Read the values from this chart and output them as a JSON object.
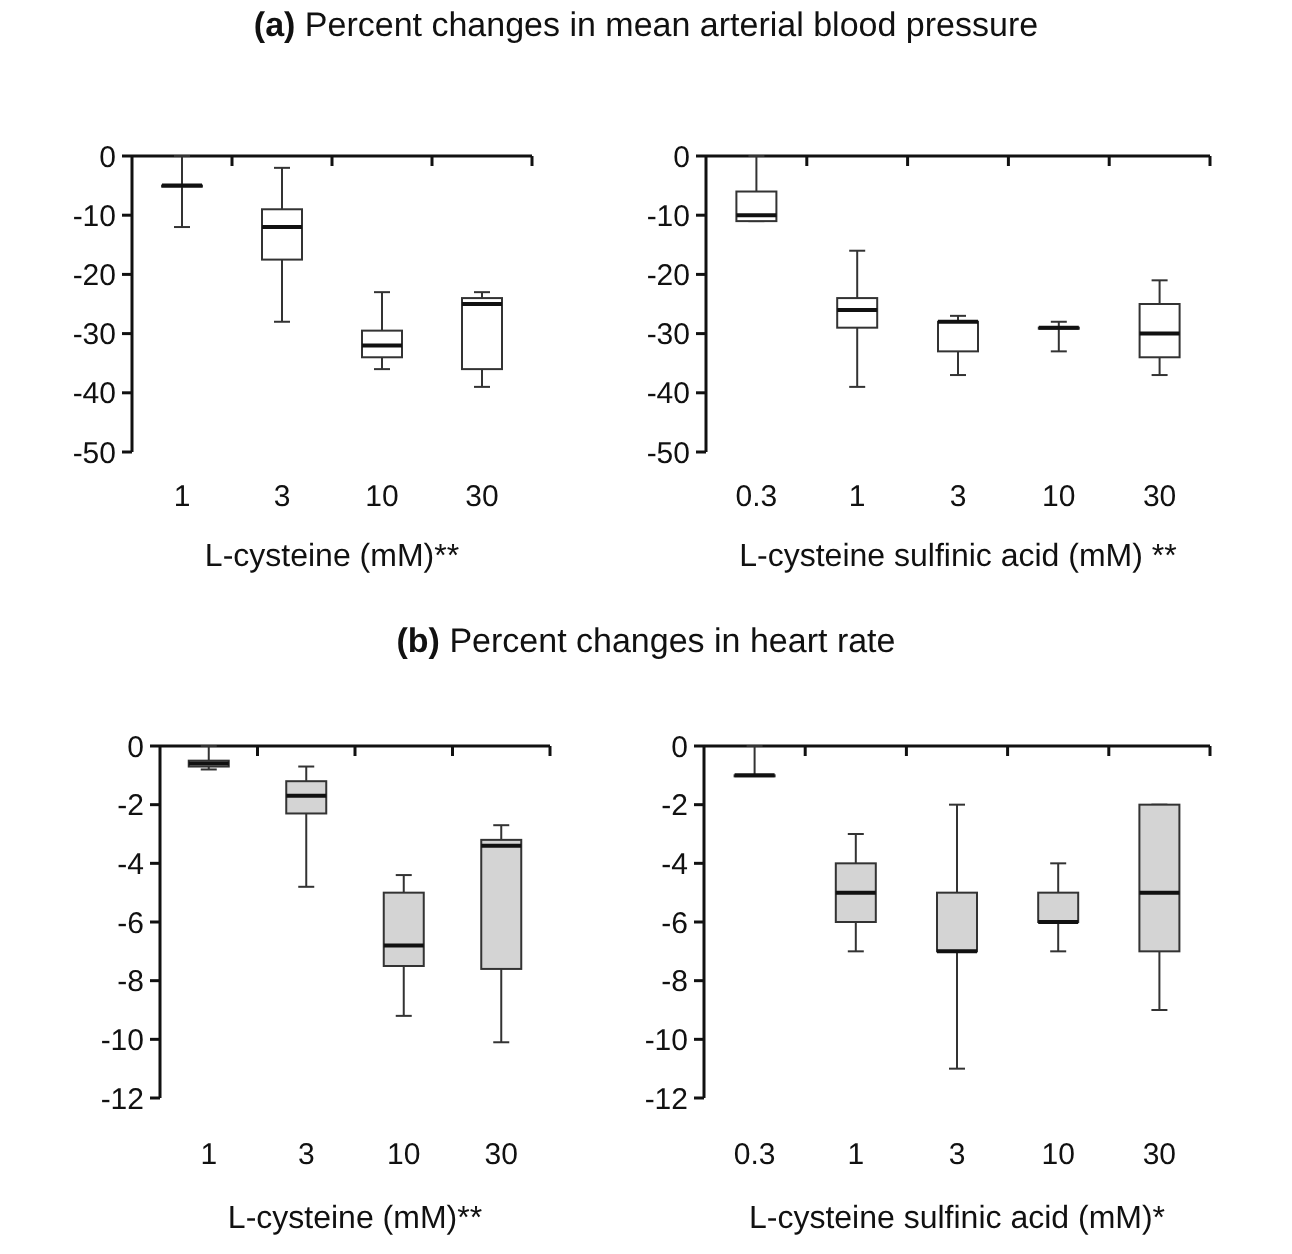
{
  "chart_data": [
    {
      "type": "box",
      "title": "(a) Percent changes in mean arterial blood pressure",
      "xlabel": "L-cysteine (mM)**",
      "categories": [
        "1",
        "3",
        "10",
        "30"
      ],
      "ylim": [
        -50,
        0
      ],
      "yticks": [
        0,
        -10,
        -20,
        -30,
        -40,
        -50
      ],
      "series": [
        {
          "color": "#ffffff",
          "boxes": [
            {
              "low": -12,
              "q1": -5,
              "median": -5,
              "q3": -5,
              "high": 0
            },
            {
              "low": -28,
              "q1": -17.5,
              "median": -12,
              "q3": -9,
              "high": -2
            },
            {
              "low": -36,
              "q1": -34,
              "median": -32,
              "q3": -29.5,
              "high": -23
            },
            {
              "low": -39,
              "q1": -36,
              "median": -25,
              "q3": -24,
              "high": -23
            }
          ]
        }
      ]
    },
    {
      "type": "box",
      "xlabel": "L-cysteine sulfinic acid (mM) **",
      "categories": [
        "0.3",
        "1",
        "3",
        "10",
        "30"
      ],
      "ylim": [
        -50,
        0
      ],
      "yticks": [
        0,
        -10,
        -20,
        -30,
        -40,
        -50
      ],
      "series": [
        {
          "color": "#ffffff",
          "boxes": [
            {
              "low": -11,
              "q1": -11,
              "median": -10,
              "q3": -6,
              "high": 0
            },
            {
              "low": -39,
              "q1": -29,
              "median": -26,
              "q3": -24,
              "high": -16
            },
            {
              "low": -37,
              "q1": -33,
              "median": -28,
              "q3": -28,
              "high": -27
            },
            {
              "low": -33,
              "q1": -29,
              "median": -29,
              "q3": -29,
              "high": -28
            },
            {
              "low": -37,
              "q1": -34,
              "median": -30,
              "q3": -25,
              "high": -21
            }
          ]
        }
      ]
    },
    {
      "type": "box",
      "title": "(b) Percent changes in heart rate",
      "xlabel": "L-cysteine (mM)**",
      "categories": [
        "1",
        "3",
        "10",
        "30"
      ],
      "ylim": [
        -12,
        0
      ],
      "yticks": [
        0,
        -2,
        -4,
        -6,
        -8,
        -10,
        -12
      ],
      "series": [
        {
          "color": "#d4d4d4",
          "boxes": [
            {
              "low": -0.8,
              "q1": -0.7,
              "median": -0.6,
              "q3": -0.5,
              "high": 0
            },
            {
              "low": -4.8,
              "q1": -2.3,
              "median": -1.7,
              "q3": -1.2,
              "high": -0.7
            },
            {
              "low": -9.2,
              "q1": -7.5,
              "median": -6.8,
              "q3": -5,
              "high": -4.4
            },
            {
              "low": -10.1,
              "q1": -7.6,
              "median": -3.4,
              "q3": -3.2,
              "high": -2.7
            }
          ]
        }
      ]
    },
    {
      "type": "box",
      "xlabel": "L-cysteine sulfinic acid (mM)*",
      "categories": [
        "0.3",
        "1",
        "3",
        "10",
        "30"
      ],
      "ylim": [
        -12,
        0
      ],
      "yticks": [
        0,
        -2,
        -4,
        -6,
        -8,
        -10,
        -12
      ],
      "series": [
        {
          "color": "#d4d4d4",
          "boxes": [
            {
              "low": -1,
              "q1": -1,
              "median": -1,
              "q3": -1,
              "high": 0
            },
            {
              "low": -7,
              "q1": -6,
              "median": -5,
              "q3": -4,
              "high": -3
            },
            {
              "low": -11,
              "q1": -7,
              "median": -7,
              "q3": -5,
              "high": -2
            },
            {
              "low": -7,
              "q1": -6,
              "median": -6,
              "q3": -5,
              "high": -4
            },
            {
              "low": -9,
              "q1": -7,
              "median": -5,
              "q3": -2,
              "high": -2
            }
          ]
        }
      ]
    }
  ]
}
